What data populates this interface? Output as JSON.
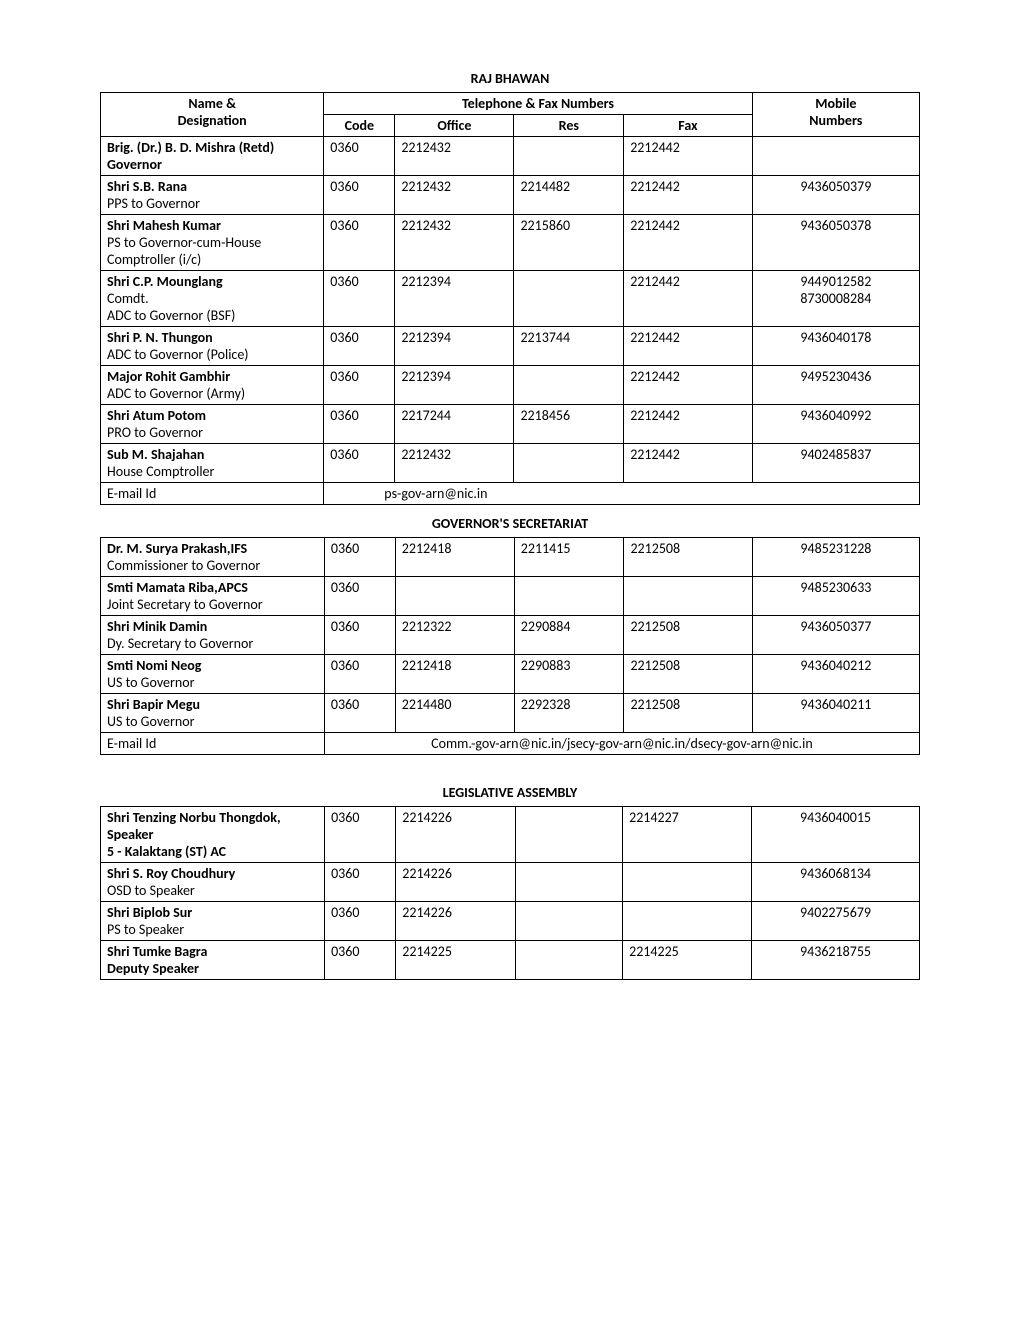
{
  "sections": {
    "raj_bhawan": {
      "title": "RAJ BHAWAN",
      "header": {
        "name_designation_l1": "Name &",
        "name_designation_l2": "Designation",
        "telephone_fax": "Telephone & Fax Numbers",
        "code": "Code",
        "office": "Office",
        "res": "Res",
        "fax": "Fax",
        "mobile_l1": "Mobile",
        "mobile_l2": "Numbers"
      },
      "rows": [
        {
          "name_bold": "Brig. (Dr.)  B. D. Mishra (Retd)",
          "name_rest": "",
          "name_bold2": "Governor",
          "code": "0360",
          "office": "2212432",
          "res": "",
          "fax": "2212442",
          "mobile": ""
        },
        {
          "name_bold": "Shri  S.B. Rana",
          "name_rest": "PPS  to Governor",
          "code": "0360",
          "office": "2212432",
          "res": "2214482",
          "fax": "2212442",
          "mobile": "9436050379"
        },
        {
          "name_bold": "Shri Mahesh Kumar",
          "name_rest": "PS to Governor-cum-House Comptroller  (i/c)",
          "code": "0360",
          "office": "2212432",
          "res": "2215860",
          "fax": "2212442",
          "mobile": "9436050378"
        },
        {
          "name_bold": "Shri  C.P. Mounglang",
          "name_rest": "Comdt.\nADC to Governor (BSF)",
          "code": "0360",
          "office": "2212394",
          "res": "",
          "fax": "2212442",
          "mobile": "9449012582\n8730008284"
        },
        {
          "name_bold": "Shri P. N. Thungon",
          "name_rest": "ADC to Governor (Police)",
          "code": "0360",
          "office": "2212394",
          "res": "2213744",
          "fax": "2212442",
          "mobile": "9436040178"
        },
        {
          "name_bold": "Major Rohit Gambhir",
          "name_rest": "ADC to Governor (Army)",
          "code": "0360",
          "office": "2212394",
          "res": "",
          "fax": "2212442",
          "mobile": "9495230436"
        },
        {
          "name_bold": "Shri Atum Potom",
          "name_rest": "PRO to Governor",
          "code": "0360",
          "office": "2217244",
          "res": "2218456",
          "fax": "2212442",
          "mobile": "9436040992"
        },
        {
          "name_bold": "Sub M. Shajahan",
          "name_rest": "House Comptroller",
          "code": "0360",
          "office": "2212432",
          "res": "",
          "fax": "2212442",
          "mobile": "9402485837"
        }
      ],
      "email_label": "E-mail Id",
      "email_value": "ps-gov-arn@nic.in"
    },
    "governors_secretariat": {
      "title": "GOVERNOR'S   SECRETARIAT",
      "rows": [
        {
          "name_bold": "Dr. M. Surya Prakash,IFS",
          "name_rest": "Commissioner   to Governor",
          "code": "0360",
          "office": "2212418",
          "res": "2211415",
          "fax": "2212508",
          "mobile": "9485231228"
        },
        {
          "name_bold": "Smti Mamata Riba,APCS",
          "name_rest": "Joint Secretary to Governor",
          "code": "0360",
          "office": "",
          "res": "",
          "fax": "",
          "mobile": "9485230633"
        },
        {
          "name_bold": "Shri  Minik Damin",
          "name_rest": "Dy. Secretary to Governor",
          "code": "0360",
          "office": "2212322",
          "res": "2290884",
          "fax": "2212508",
          "mobile": "9436050377"
        },
        {
          "name_bold": "Smti Nomi Neog",
          "name_rest": "US to  Governor",
          "code": "0360",
          "office": "2212418",
          "res": "2290883",
          "fax": "2212508",
          "mobile": "9436040212"
        },
        {
          "name_bold": "Shri Bapir  Megu",
          "name_rest": "US  to Governor",
          "code": "0360",
          "office": "2214480",
          "res": "2292328",
          "fax": "2212508",
          "mobile": "9436040211"
        }
      ],
      "email_label": "E-mail Id",
      "email_value": "Comm.-gov-arn@nic.in/jsecy-gov-arn@nic.in/dsecy-gov-arn@nic.in"
    },
    "legislative_assembly": {
      "title": "LEGISLATIVE ASSEMBLY",
      "rows": [
        {
          "name_bold": "Shri  Tenzing Norbu Thongdok, Speaker\n5 - Kalaktang  (ST) AC",
          "name_rest": "",
          "code": "0360",
          "office": "2214226",
          "res": "",
          "fax": "2214227",
          "mobile": "9436040015"
        },
        {
          "name_bold": "Shri S. Roy Choudhury",
          "name_rest": "OSD to Speaker",
          "code": "0360",
          "office": "2214226",
          "res": "",
          "fax": "",
          "mobile": "9436068134"
        },
        {
          "name_bold": "Shri Biplob Sur",
          "name_rest": "PS to Speaker",
          "code": "0360",
          "office": "2214226",
          "res": "",
          "fax": "",
          "mobile": "9402275679"
        },
        {
          "name_bold": "Shri Tumke Bagra\nDeputy Speaker",
          "name_rest": "",
          "code": "0360",
          "office": "2214225",
          "res": "",
          "fax": "2214225",
          "mobile": "9436218755"
        }
      ]
    }
  }
}
